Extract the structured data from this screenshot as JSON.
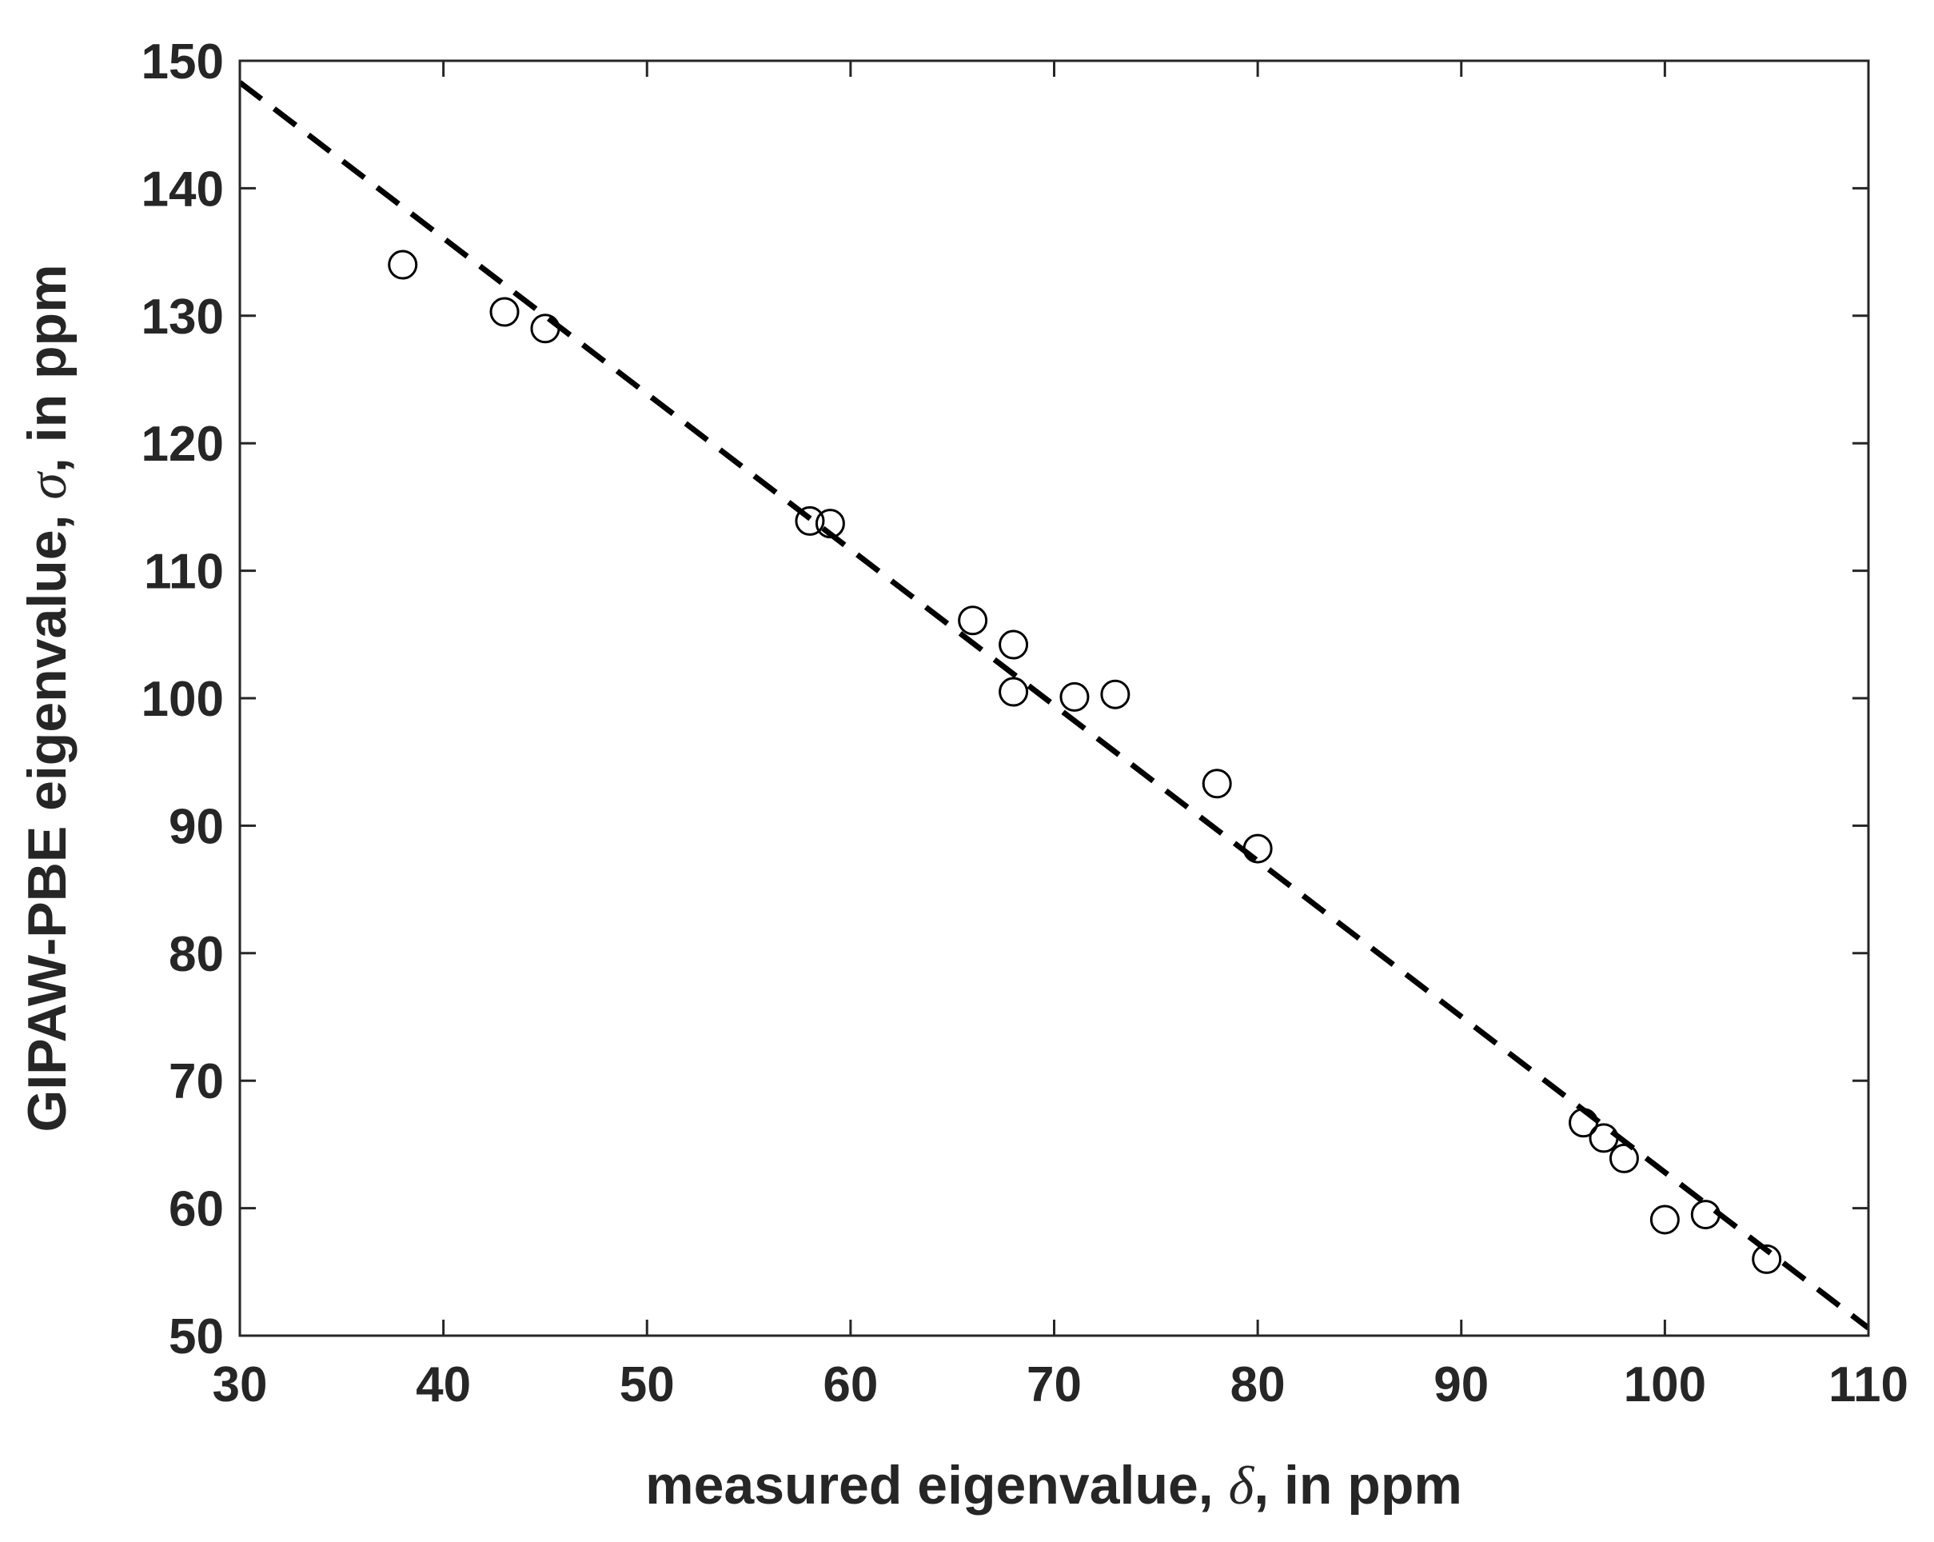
{
  "chart_data": {
    "type": "scatter",
    "title": "",
    "xlabel": {
      "before": "measured eigenvalue, ",
      "symbol": "δ",
      "after": ", in ppm"
    },
    "ylabel": {
      "before": "GIPAW-PBE eigenvalue, ",
      "symbol": "σ",
      "after": ", in ppm"
    },
    "xlim": [
      30,
      110
    ],
    "ylim": [
      50,
      150
    ],
    "xticks": [
      30,
      40,
      50,
      60,
      70,
      80,
      90,
      100,
      110
    ],
    "yticks": [
      50,
      60,
      70,
      80,
      90,
      100,
      110,
      120,
      130,
      140,
      150
    ],
    "grid": false,
    "legend": "none",
    "series": [
      {
        "marker": "open-circle",
        "color": "#000000",
        "points": [
          {
            "x": 38,
            "y": 134
          },
          {
            "x": 43,
            "y": 130.3
          },
          {
            "x": 45,
            "y": 129
          },
          {
            "x": 58,
            "y": 113.9
          },
          {
            "x": 59,
            "y": 113.7
          },
          {
            "x": 66,
            "y": 106.1
          },
          {
            "x": 68,
            "y": 104.2
          },
          {
            "x": 68,
            "y": 100.5
          },
          {
            "x": 71,
            "y": 100.1
          },
          {
            "x": 73,
            "y": 100.3
          },
          {
            "x": 78,
            "y": 93.3
          },
          {
            "x": 80,
            "y": 88.2
          },
          {
            "x": 96,
            "y": 66.7
          },
          {
            "x": 97,
            "y": 65.5
          },
          {
            "x": 98,
            "y": 63.9
          },
          {
            "x": 100,
            "y": 59.1
          },
          {
            "x": 102,
            "y": 59.5
          },
          {
            "x": 105,
            "y": 56
          }
        ]
      }
    ],
    "fit_line": {
      "style": "dashed",
      "color": "#000000",
      "points": [
        {
          "x": 30,
          "y": 148.3
        },
        {
          "x": 110,
          "y": 50.6
        }
      ]
    }
  }
}
